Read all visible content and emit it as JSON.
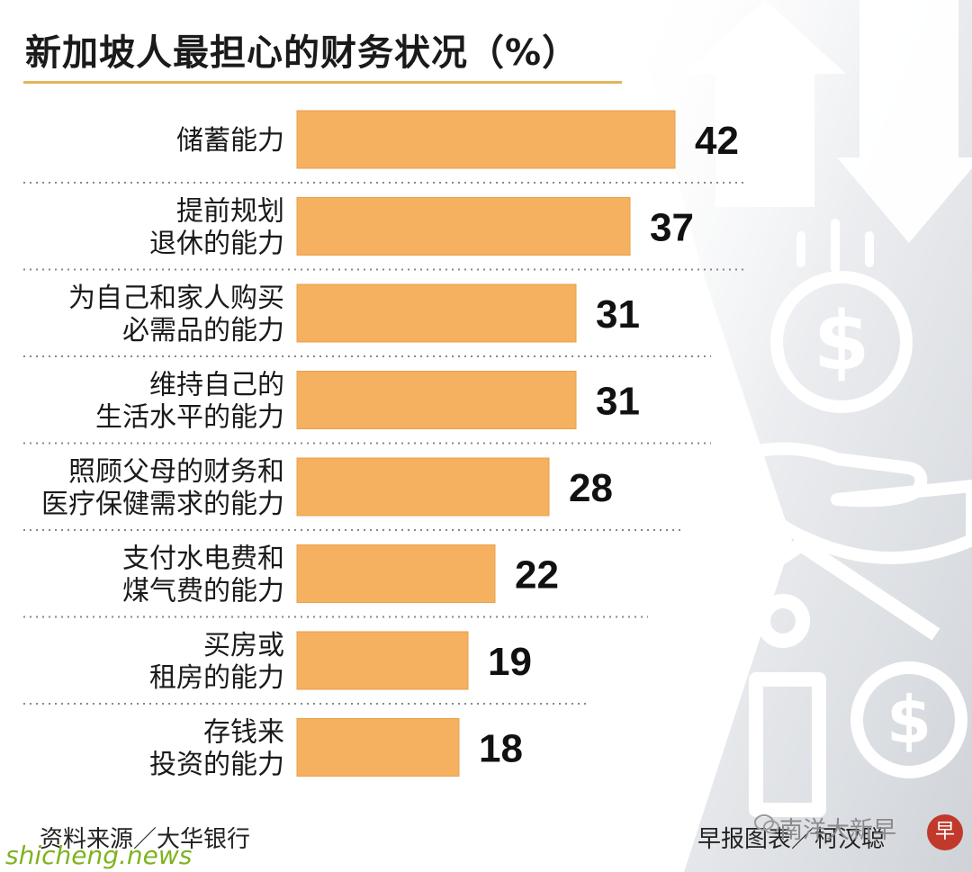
{
  "title": "新加坡人最担心的财务状况（%）",
  "footer": {
    "source": "资料来源／大华银行",
    "credit": "早报图表／柯汉聪"
  },
  "watermarks": {
    "left": "shicheng.news",
    "right": "南洋大新早",
    "badge": "早",
    "wechat_icon": "wechat-icon"
  },
  "colors": {
    "bar": "#f5b15f",
    "bar_edge": "#e8a04a",
    "value_text": "#111111",
    "label_text": "#1a1a1a",
    "separator": "#888888"
  },
  "chart_data": {
    "type": "bar",
    "orientation": "horizontal",
    "title": "新加坡人最担心的财务状况（%）",
    "categories": [
      [
        "储蓄能力"
      ],
      [
        "提前规划",
        "退休的能力"
      ],
      [
        "为自己和家人购买",
        "必需品的能力"
      ],
      [
        "维持自己的",
        "生活水平的能力"
      ],
      [
        "照顾父母的财务和",
        "医疗保健需求的能力"
      ],
      [
        "支付水电费和",
        "煤气费的能力"
      ],
      [
        "买房或",
        "租房的能力"
      ],
      [
        "存钱来",
        "投资的能力"
      ]
    ],
    "values": [
      42,
      37,
      31,
      31,
      28,
      22,
      19,
      18
    ],
    "value_labels": [
      "42",
      "37",
      "31",
      "31",
      "28",
      "22",
      "19",
      "18"
    ],
    "xlim": [
      0,
      42
    ],
    "grid": false,
    "legend": "none"
  }
}
